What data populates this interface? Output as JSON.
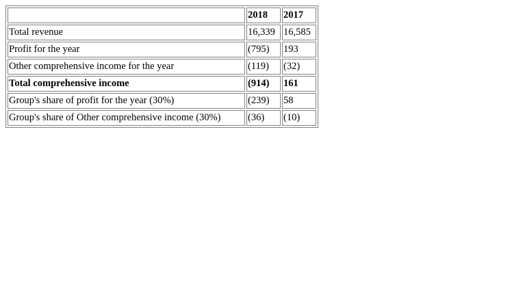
{
  "table": {
    "headers": [
      "",
      "2018",
      "2017"
    ],
    "rows": [
      {
        "label": "Total revenue",
        "y2018": "16,339",
        "y2017": "16,585",
        "bold": false
      },
      {
        "label": "Profit for the year",
        "y2018": "(795)",
        "y2017": "193",
        "bold": false
      },
      {
        "label": "Other comprehensive income for the year",
        "y2018": "(119)",
        "y2017": "(32)",
        "bold": false
      },
      {
        "label": "Total comprehensive income",
        "y2018": "(914)",
        "y2017": "161",
        "bold": true
      },
      {
        "label": "Group's share of profit for the year (30%)",
        "y2018": "(239)",
        "y2017": "58",
        "bold": false
      },
      {
        "label": "Group's share of Other comprehensive income (30%)",
        "y2018": "(36)",
        "y2017": "(10)",
        "bold": false
      }
    ]
  }
}
